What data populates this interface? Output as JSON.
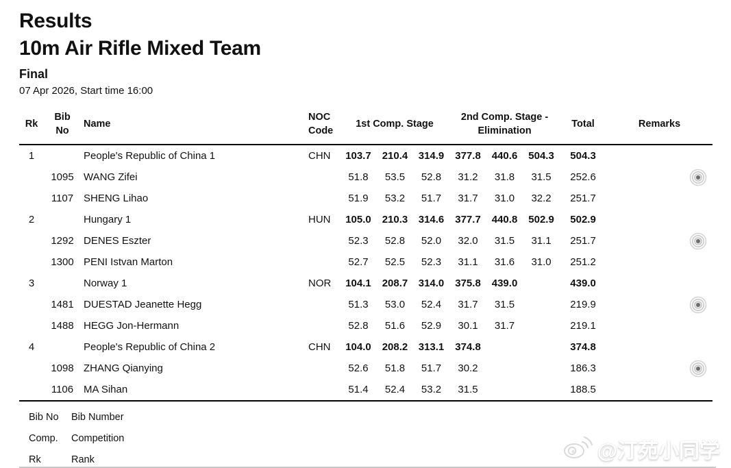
{
  "page": {
    "title": "Results",
    "event": "10m Air Rifle Mixed Team",
    "phase": "Final",
    "schedule": "07 Apr 2026, Start time 16:00"
  },
  "table": {
    "headers": {
      "rk": "Rk",
      "bib_no": "Bib No",
      "name": "Name",
      "noc_code": "NOC Code",
      "stage1": "1st Comp. Stage",
      "stage2": "2nd Comp. Stage - Elimination",
      "total": "Total",
      "remarks": "Remarks"
    },
    "teams": [
      {
        "rank": "1",
        "name": "People's Republic of China 1",
        "noc": "CHN",
        "scores": [
          "103.7",
          "210.4",
          "314.9",
          "377.8",
          "440.6",
          "504.3"
        ],
        "total": "504.3",
        "members": [
          {
            "bib": "1095",
            "name": "WANG Zifei",
            "scores": [
              "51.8",
              "53.5",
              "52.8",
              "31.2",
              "31.8",
              "31.5"
            ],
            "total": "252.6",
            "remark_icon": "target-icon"
          },
          {
            "bib": "1107",
            "name": "SHENG Lihao",
            "scores": [
              "51.9",
              "53.2",
              "51.7",
              "31.7",
              "31.0",
              "32.2"
            ],
            "total": "251.7",
            "remark_icon": null
          }
        ]
      },
      {
        "rank": "2",
        "name": "Hungary 1",
        "noc": "HUN",
        "scores": [
          "105.0",
          "210.3",
          "314.6",
          "377.7",
          "440.8",
          "502.9"
        ],
        "total": "502.9",
        "members": [
          {
            "bib": "1292",
            "name": "DENES Eszter",
            "scores": [
              "52.3",
              "52.8",
              "52.0",
              "32.0",
              "31.5",
              "31.1"
            ],
            "total": "251.7",
            "remark_icon": "target-icon"
          },
          {
            "bib": "1300",
            "name": "PENI Istvan Marton",
            "scores": [
              "52.7",
              "52.5",
              "52.3",
              "31.1",
              "31.6",
              "31.0"
            ],
            "total": "251.2",
            "remark_icon": null
          }
        ]
      },
      {
        "rank": "3",
        "name": "Norway 1",
        "noc": "NOR",
        "scores": [
          "104.1",
          "208.7",
          "314.0",
          "375.8",
          "439.0",
          ""
        ],
        "total": "439.0",
        "members": [
          {
            "bib": "1481",
            "name": "DUESTAD Jeanette Hegg",
            "scores": [
              "51.3",
              "53.0",
              "52.4",
              "31.7",
              "31.5",
              ""
            ],
            "total": "219.9",
            "remark_icon": "target-icon"
          },
          {
            "bib": "1488",
            "name": "HEGG Jon-Hermann",
            "scores": [
              "52.8",
              "51.6",
              "52.9",
              "30.1",
              "31.7",
              ""
            ],
            "total": "219.1",
            "remark_icon": null
          }
        ]
      },
      {
        "rank": "4",
        "name": "People's Republic of China 2",
        "noc": "CHN",
        "scores": [
          "104.0",
          "208.2",
          "313.1",
          "374.8",
          "",
          ""
        ],
        "total": "374.8",
        "members": [
          {
            "bib": "1098",
            "name": "ZHANG Qianying",
            "scores": [
              "52.6",
              "51.8",
              "51.7",
              "30.2",
              "",
              ""
            ],
            "total": "186.3",
            "remark_icon": "target-icon"
          },
          {
            "bib": "1106",
            "name": "MA Sihan",
            "scores": [
              "51.4",
              "52.4",
              "53.2",
              "31.5",
              "",
              ""
            ],
            "total": "188.5",
            "remark_icon": null
          }
        ]
      }
    ]
  },
  "legend": {
    "items": [
      {
        "abbr": "Bib No",
        "full": "Bib Number"
      },
      {
        "abbr": "Comp.",
        "full": "Competition"
      },
      {
        "abbr": "Rk",
        "full": "Rank"
      }
    ]
  },
  "watermark": {
    "icon": "weibo-icon",
    "text": "@汀苑小同学"
  },
  "colors": {
    "text": "#111111",
    "rule": "#000000",
    "remark_ring": "#cdcdcd",
    "remark_dot": "#6e6e6e",
    "watermark": "#e9e9e9"
  }
}
